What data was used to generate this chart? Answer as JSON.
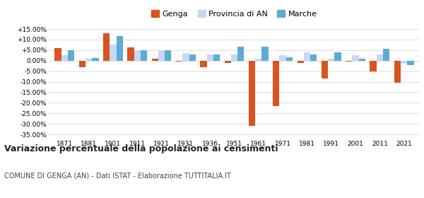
{
  "years": [
    1871,
    1881,
    1901,
    1911,
    1921,
    1931,
    1936,
    1951,
    1961,
    1971,
    1981,
    1991,
    2001,
    2011,
    2021
  ],
  "genga": [
    6.0,
    -3.0,
    13.0,
    6.2,
    0.8,
    -0.3,
    -3.2,
    -1.0,
    -31.0,
    -21.5,
    -1.0,
    -8.5,
    -0.5,
    -5.0,
    -10.5
  ],
  "provincia_an": [
    2.5,
    1.0,
    7.5,
    5.0,
    5.0,
    3.5,
    3.0,
    3.0,
    1.0,
    2.5,
    4.0,
    1.0,
    2.5,
    3.0,
    -1.5
  ],
  "marche": [
    4.8,
    1.3,
    11.5,
    5.0,
    4.8,
    3.0,
    2.8,
    6.5,
    6.5,
    1.5,
    3.0,
    3.8,
    1.0,
    5.5,
    -2.0
  ],
  "color_genga": "#d9541e",
  "color_provincia": "#c5d8f5",
  "color_marche": "#5bacd4",
  "title": "Variazione percentuale della popolazione ai censimenti",
  "subtitle": "COMUNE DI GENGA (AN) - Dati ISTAT - Elaborazione TUTTITALIA.IT",
  "ylim": [
    -37,
    17.5
  ],
  "yticks": [
    -35,
    -30,
    -25,
    -20,
    -15,
    -10,
    -5,
    0,
    5,
    10,
    15
  ],
  "bg_color": "#ffffff",
  "grid_color": "#d8d8d8",
  "bar_width": 0.27
}
